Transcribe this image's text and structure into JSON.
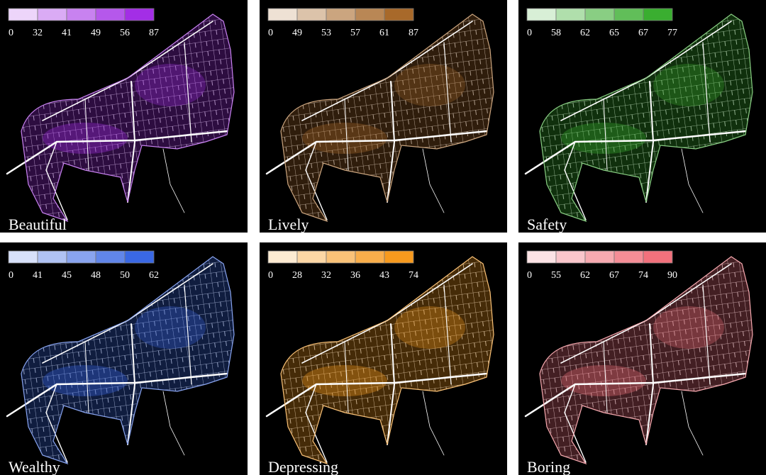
{
  "panels": [
    {
      "label": "Beautiful",
      "color": "#a32ee6",
      "breaks": [
        0,
        32,
        41,
        49,
        56,
        87
      ]
    },
    {
      "label": "Lively",
      "color": "#a8692a",
      "breaks": [
        0,
        49,
        53,
        57,
        61,
        87
      ]
    },
    {
      "label": "Safety",
      "color": "#3aae30",
      "breaks": [
        0,
        58,
        62,
        65,
        67,
        77
      ]
    },
    {
      "label": "Wealthy",
      "color": "#3a68e4",
      "breaks": [
        0,
        41,
        45,
        48,
        50,
        62
      ]
    },
    {
      "label": "Depressing",
      "color": "#f79a1e",
      "breaks": [
        0,
        28,
        32,
        36,
        43,
        74
      ]
    },
    {
      "label": "Boring",
      "color": "#f2717c",
      "breaks": [
        0,
        55,
        62,
        67,
        74,
        90
      ]
    }
  ]
}
